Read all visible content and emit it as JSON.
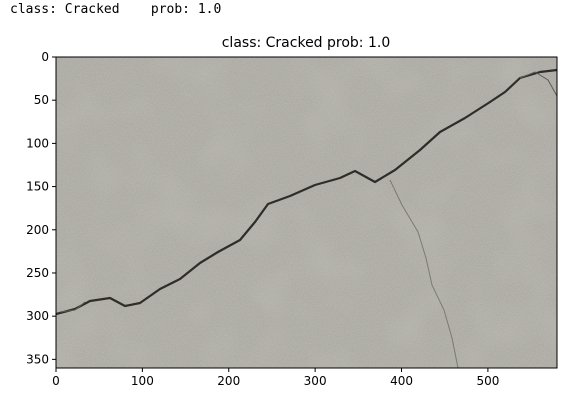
{
  "console_output": "class: Cracked    prob: 1.0",
  "chart_data": {
    "type": "image",
    "title": "class: Cracked   prob: 1.0",
    "image_subject": "grey concrete surface with a diagonal crack",
    "xlim": [
      0,
      580
    ],
    "ylim": [
      360,
      0
    ],
    "x_ticks": [
      0,
      100,
      200,
      300,
      400,
      500
    ],
    "y_ticks": [
      0,
      50,
      100,
      150,
      200,
      250,
      300,
      350
    ],
    "colors": {
      "concrete": "#b3b1ab",
      "crack": "#2e2d2a",
      "frame": "#000000"
    }
  }
}
